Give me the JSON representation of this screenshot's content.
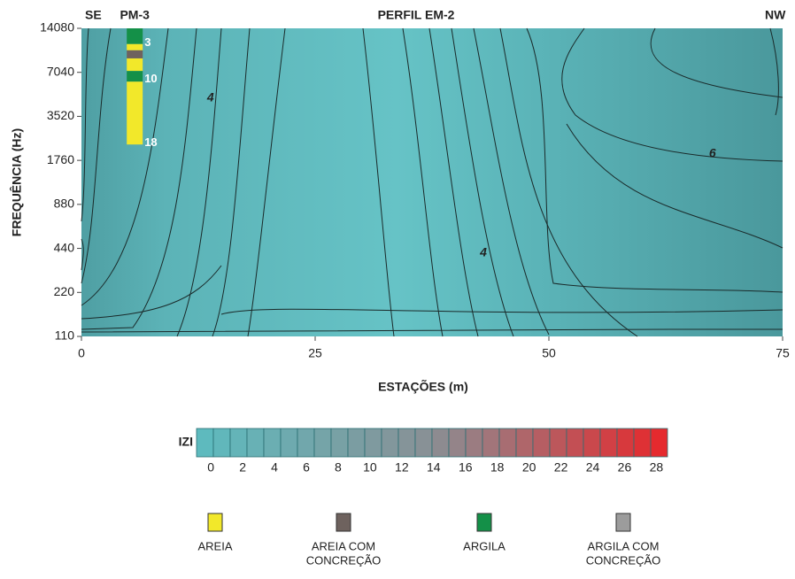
{
  "chart_data": {
    "type": "contour",
    "title": "PERFIL EM-2",
    "left_label": "SE",
    "right_label": "NW",
    "xlabel": "ESTAÇÕES (m)",
    "ylabel": "FREQUÊNCIA (Hz)",
    "xlim": [
      0,
      75
    ],
    "xticks": [
      0,
      25,
      50,
      75
    ],
    "ylim": [
      110,
      14080
    ],
    "yticks": [
      110,
      220,
      440,
      880,
      1760,
      3520,
      7040,
      14080
    ],
    "log_y": true,
    "fill_color": "#5fb9bd",
    "contour_labels": [
      {
        "text": "4",
        "x": 13.8,
        "y": 4700
      },
      {
        "text": "4",
        "x": 43,
        "y": 410
      },
      {
        "text": "6",
        "x": 67.5,
        "y": 1950
      }
    ],
    "borehole": {
      "name": "PM-3",
      "x": 5.7,
      "segments": [
        {
          "top": 14080,
          "bottom": 10990,
          "material": 2
        },
        {
          "top": 10990,
          "bottom": 9956,
          "material": 0
        },
        {
          "top": 9956,
          "bottom": 8770,
          "material": 1
        },
        {
          "top": 8770,
          "bottom": 7190,
          "material": 0
        },
        {
          "top": 7190,
          "bottom": 6080,
          "material": 2
        },
        {
          "top": 6080,
          "bottom": 2260,
          "material": 0
        }
      ],
      "depths": [
        {
          "label": 3,
          "y": 11200
        },
        {
          "label": 10,
          "y": 6300
        },
        {
          "label": 18,
          "y": 2320
        }
      ]
    },
    "colorbar": {
      "label": "IZI",
      "lim": [
        -0.9,
        28.7
      ],
      "ticks": [
        0,
        2,
        4,
        6,
        8,
        10,
        12,
        14,
        16,
        18,
        20,
        22,
        24,
        26,
        28
      ],
      "colors": [
        "#5cbcc0",
        "#8a8f94",
        "#e8262a"
      ]
    },
    "legend": [
      {
        "lines": [
          "AREIA"
        ],
        "color": "#f2e82a"
      },
      {
        "lines": [
          "AREIA COM",
          "CONCREÇÃO"
        ],
        "color": "#6e625e"
      },
      {
        "lines": [
          "ARGILA"
        ],
        "color": "#149048"
      },
      {
        "lines": [
          "ARGILA COM",
          "CONCREÇÃO"
        ],
        "color": "#9c9c9c"
      }
    ]
  }
}
